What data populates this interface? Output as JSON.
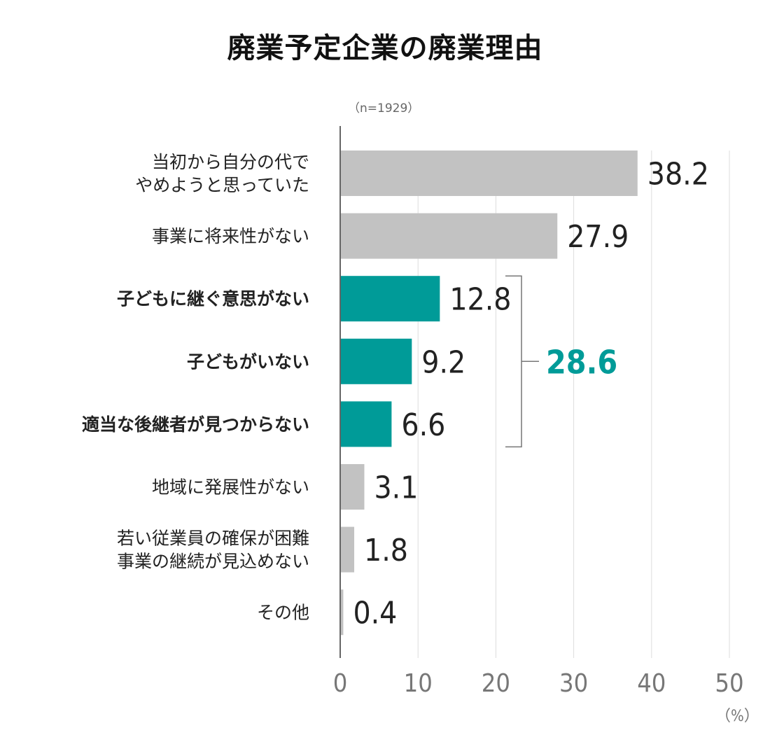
{
  "chart_data": {
    "type": "bar",
    "orientation": "horizontal",
    "title": "廃業予定企業の廃業理由",
    "sample_note": "（n=1929）",
    "unit": "（%）",
    "categories": [
      "当初から自分の代で\nやめようと思っていた",
      "事業に将来性がない",
      "子どもに継ぐ意思がない",
      "子どもがいない",
      "適当な後継者が見つからない",
      "地域に発展性がない",
      "若い従業員の確保が困難\n事業の継続が見込めない",
      "その他"
    ],
    "values": [
      38.2,
      27.9,
      12.8,
      9.2,
      6.6,
      3.1,
      1.8,
      0.4
    ],
    "value_labels": [
      "38.2",
      "27.9",
      "12.8",
      "9.2",
      "6.6",
      "3.1",
      "1.8",
      "0.4"
    ],
    "highlighted": [
      false,
      false,
      true,
      true,
      true,
      false,
      false,
      false
    ],
    "xlim": [
      0,
      50
    ],
    "x_ticks": [
      0,
      10,
      20,
      30,
      40,
      50
    ],
    "x_tick_labels": [
      "0",
      "10",
      "20",
      "30",
      "40",
      "50"
    ],
    "grid": true,
    "group_total": {
      "label": "28.6",
      "from_index": 2,
      "to_index": 4
    },
    "colors": {
      "default_bar": "#c2c2c2",
      "highlight_bar": "#009b98",
      "group_total": "#009b98",
      "text": "#222222",
      "axis": "#666666",
      "grid": "#dddddd"
    }
  }
}
